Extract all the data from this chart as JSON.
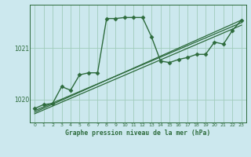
{
  "title": "Graphe pression niveau de la mer (hPa)",
  "bg_color": "#cce8ee",
  "grid_color": "#a0ccbb",
  "line_color": "#2d6b3c",
  "text_color": "#2d6b3c",
  "xlim": [
    -0.5,
    23.5
  ],
  "ylim": [
    1019.55,
    1021.85
  ],
  "yticks": [
    1020,
    1021
  ],
  "xticks": [
    0,
    1,
    2,
    3,
    4,
    5,
    6,
    7,
    8,
    9,
    10,
    11,
    12,
    13,
    14,
    15,
    16,
    17,
    18,
    19,
    20,
    21,
    22,
    23
  ],
  "series": [
    {
      "x": [
        0,
        1,
        2,
        3,
        4,
        5,
        6,
        7,
        8,
        9,
        10,
        11,
        12,
        13,
        14,
        15,
        16,
        17,
        18,
        19,
        20,
        21,
        22,
        23
      ],
      "y": [
        1019.82,
        1019.9,
        1019.92,
        1020.25,
        1020.18,
        1020.48,
        1020.52,
        1020.52,
        1021.58,
        1021.58,
        1021.6,
        1021.6,
        1021.6,
        1021.22,
        1020.75,
        1020.72,
        1020.78,
        1020.82,
        1020.88,
        1020.88,
        1021.12,
        1021.08,
        1021.35,
        1021.55
      ],
      "marker": "D",
      "markersize": 2.5,
      "linewidth": 1.0
    },
    {
      "x": [
        0,
        23
      ],
      "y": [
        1019.75,
        1021.55
      ],
      "marker": null,
      "linewidth": 0.9
    },
    {
      "x": [
        0,
        23
      ],
      "y": [
        1019.72,
        1021.45
      ],
      "marker": null,
      "linewidth": 0.9
    },
    {
      "x": [
        0,
        23
      ],
      "y": [
        1019.78,
        1021.5
      ],
      "marker": null,
      "linewidth": 0.9
    }
  ]
}
